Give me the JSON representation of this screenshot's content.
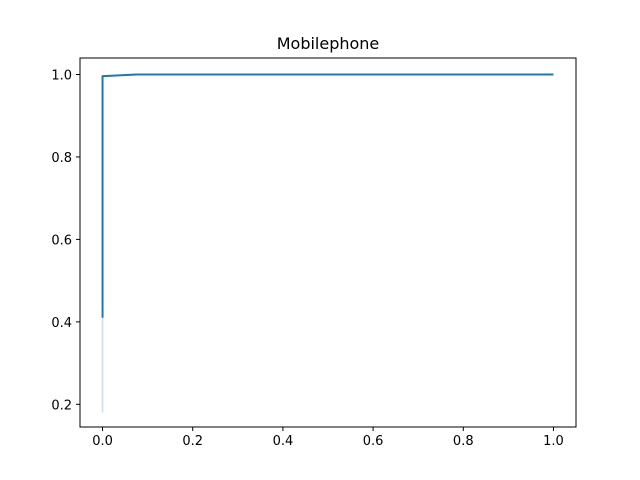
{
  "chart_data": {
    "type": "line",
    "title": "Mobilephone",
    "xlabel": "",
    "ylabel": "",
    "xlim": [
      -0.05,
      1.05
    ],
    "ylim": [
      0.145,
      1.04
    ],
    "xticks": [
      0.0,
      0.2,
      0.4,
      0.6,
      0.8,
      1.0
    ],
    "xtick_labels": [
      "0.0",
      "0.2",
      "0.4",
      "0.6",
      "0.8",
      "1.0"
    ],
    "yticks": [
      0.2,
      0.4,
      0.6,
      0.8,
      1.0
    ],
    "ytick_labels": [
      "0.2",
      "0.4",
      "0.6",
      "0.8",
      "1.0"
    ],
    "grid": false,
    "legend": "none",
    "colors": {
      "line": "#1f77b4",
      "band": "#aec7e8",
      "axes": "#000000"
    },
    "series": [
      {
        "x": [
          0.0,
          0.0,
          0.0,
          0.0,
          0.0,
          0.02,
          0.075,
          0.2,
          0.4,
          0.6,
          0.8,
          1.0
        ],
        "y": [
          0.41,
          0.5,
          0.7,
          0.9,
          0.996,
          0.997,
          1.0,
          1.0,
          1.0,
          1.0,
          1.0,
          1.0
        ]
      }
    ],
    "confidence_band": {
      "x": [
        0.0,
        0.0
      ],
      "y_low": [
        0.18,
        0.18
      ],
      "y_high": [
        0.41,
        0.41
      ]
    }
  }
}
